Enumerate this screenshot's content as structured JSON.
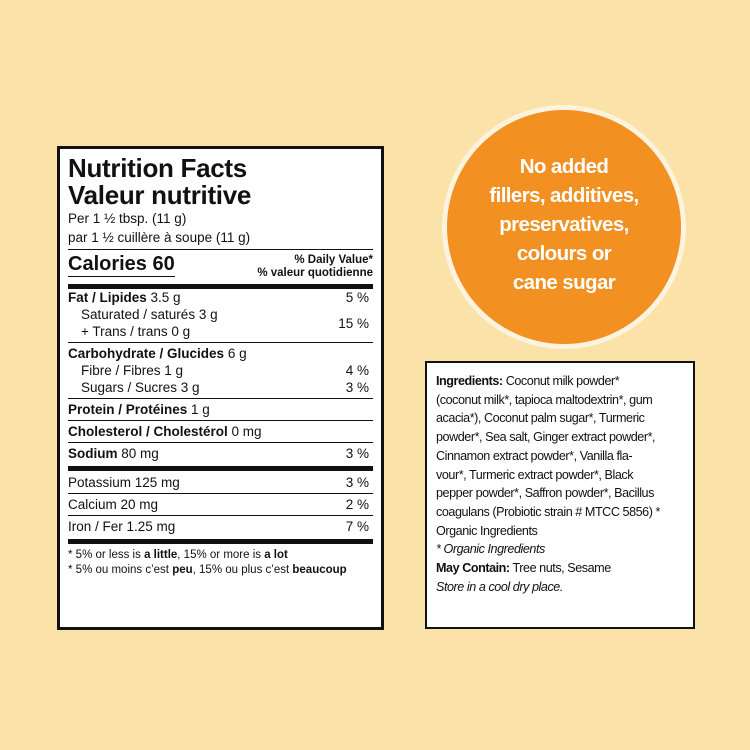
{
  "nutrition": {
    "title_en": "Nutrition Facts",
    "title_fr": "Valeur nutritive",
    "serving_en": "Per 1 ½ tbsp. (11 g)",
    "serving_fr": "par 1 ½ cuillère à soupe (11 g)",
    "calories_label": "Calories 60",
    "dv_en": "% Daily Value*",
    "dv_fr": "% valeur quotidienne",
    "fat": {
      "label": "Fat / Lipides",
      "amount": "3.5 g",
      "pct": "5 %"
    },
    "saturated": {
      "label": "Saturated / saturés 3 g"
    },
    "trans": {
      "label": "+ Trans / trans 0 g"
    },
    "sat_trans_pct": "15 %",
    "carb": {
      "label": "Carbohydrate / Glucides",
      "amount": "6 g"
    },
    "fibre": {
      "label": "Fibre / Fibres 1 g",
      "pct": "4 %"
    },
    "sugars": {
      "label": "Sugars / Sucres 3 g",
      "pct": "3 %"
    },
    "protein": {
      "label": "Protein / Protéines",
      "amount": "1 g"
    },
    "cholesterol": {
      "label": "Cholesterol / Cholestérol",
      "amount": "0 mg"
    },
    "sodium": {
      "label": "Sodium",
      "amount": "80 mg",
      "pct": "3 %"
    },
    "potassium": {
      "label": "Potassium 125 mg",
      "pct": "3 %"
    },
    "calcium": {
      "label": "Calcium 20 mg",
      "pct": "2 %"
    },
    "iron": {
      "label": "Iron / Fer 1.25 mg",
      "pct": "7 %"
    },
    "foot_en": {
      "pre": "* 5% or less is ",
      "b1": "a little",
      "mid": ", 15% or more is ",
      "b2": "a lot"
    },
    "foot_fr": {
      "pre": "* 5% ou moins c’est ",
      "b1": "peu",
      "mid": ", 15% ou plus c’est ",
      "b2": "beaucoup"
    }
  },
  "badge": {
    "lines": [
      "No added",
      "fillers, additives,",
      "preservatives,",
      "colours or",
      "cane sugar"
    ]
  },
  "ingredients": {
    "heading": "Ingredients:",
    "lines": [
      " Coconut milk powder*",
      "(coconut milk*, tapioca maltodextrin*, gum",
      "acacia*), Coconut palm sugar*, Turmeric",
      "powder*, Sea salt, Ginger extract powder*,",
      "Cinnamon extract powder*, Vanilla fla-",
      "vour*, Turmeric extract powder*, Black",
      "pepper powder*, Saffron powder*, Bacillus",
      "coagulans (Probiotic strain # MTCC 5856) *",
      "Organic Ingredients"
    ],
    "organic_note": "* Organic Ingredients",
    "may_contain_label": "May Contain:",
    "may_contain_value": " Tree nuts, Sesame",
    "storage": "Store in a cool dry place."
  }
}
